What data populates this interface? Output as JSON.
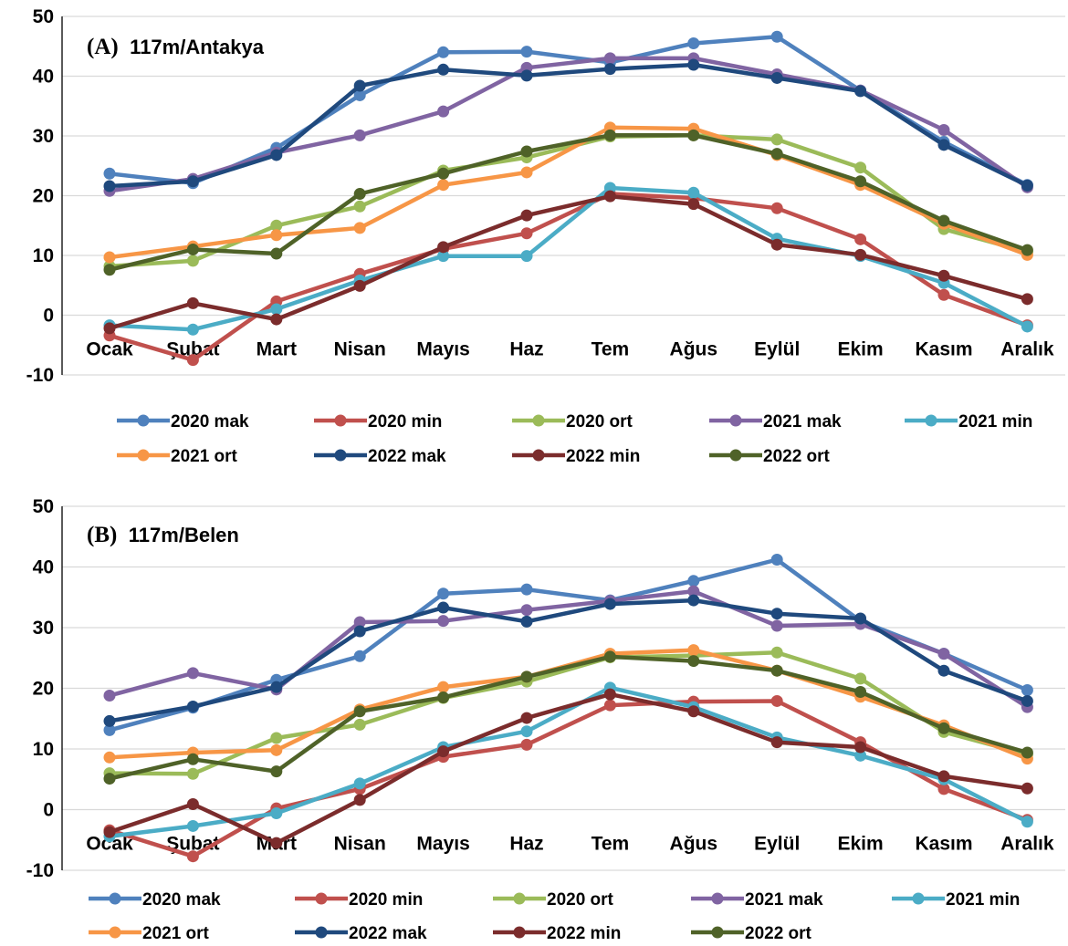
{
  "figure": {
    "panels": [
      {
        "letter": "(A)",
        "title": "117m/Antakya"
      },
      {
        "letter": "(B)",
        "title": "117m/Belen"
      }
    ]
  },
  "chart_data": [
    {
      "type": "line",
      "title": "(A) 117m/Antakya",
      "xlabel": "",
      "ylabel": "",
      "ylim": [
        -10,
        50
      ],
      "yticks": [
        -10,
        0,
        10,
        20,
        30,
        40,
        50
      ],
      "grid": "horizontal",
      "legend": "bottom",
      "categories": [
        "Ocak",
        "Şubat",
        "Mart",
        "Nisan",
        "Mayıs",
        "Haz",
        "Tem",
        "Ağus",
        "Eylül",
        "Ekim",
        "Kasım",
        "Aralık"
      ],
      "series": [
        {
          "name": "2020 mak",
          "color": "#4F81BD",
          "values": [
            23.7,
            22.1,
            28.0,
            36.8,
            44.0,
            44.1,
            42.3,
            45.5,
            46.6,
            37.6,
            29.0,
            21.8
          ]
        },
        {
          "name": "2020 min",
          "color": "#C0504D",
          "values": [
            -3.4,
            -7.5,
            2.3,
            6.9,
            11.1,
            13.7,
            20.3,
            19.6,
            17.9,
            12.7,
            3.4,
            -1.7
          ]
        },
        {
          "name": "2020 ort",
          "color": "#9BBB59",
          "values": [
            8.2,
            9.1,
            15.0,
            18.2,
            24.2,
            26.4,
            29.9,
            30.1,
            29.4,
            24.7,
            14.4,
            10.6
          ]
        },
        {
          "name": "2021 mak",
          "color": "#8064A2",
          "values": [
            20.8,
            22.8,
            27.2,
            30.1,
            34.1,
            41.4,
            43.0,
            43.0,
            40.3,
            37.6,
            31.0,
            21.4
          ]
        },
        {
          "name": "2021 min",
          "color": "#4BACC6",
          "values": [
            -1.7,
            -2.4,
            1.0,
            5.8,
            9.9,
            9.9,
            21.3,
            20.5,
            12.8,
            9.9,
            5.4,
            -1.9
          ]
        },
        {
          "name": "2021 ort",
          "color": "#F79646",
          "values": [
            9.7,
            11.5,
            13.4,
            14.6,
            21.8,
            23.9,
            31.4,
            31.2,
            26.8,
            21.8,
            15.3,
            10.1
          ]
        },
        {
          "name": "2022 mak",
          "color": "#1F497D",
          "values": [
            21.6,
            22.4,
            26.8,
            38.4,
            41.1,
            40.1,
            41.2,
            41.9,
            39.7,
            37.5,
            28.5,
            21.7
          ]
        },
        {
          "name": "2022 min",
          "color": "#7B2C2C",
          "values": [
            -2.2,
            2.0,
            -0.7,
            4.9,
            11.4,
            16.7,
            19.9,
            18.6,
            11.8,
            10.1,
            6.6,
            2.7
          ]
        },
        {
          "name": "2022 ort",
          "color": "#4F6228",
          "values": [
            7.6,
            11.0,
            10.3,
            20.3,
            23.7,
            27.4,
            30.1,
            30.1,
            27.0,
            22.4,
            15.8,
            10.9
          ]
        }
      ]
    },
    {
      "type": "line",
      "title": "(B) 117m/Belen",
      "xlabel": "",
      "ylabel": "",
      "ylim": [
        -10,
        50
      ],
      "yticks": [
        -10,
        0,
        10,
        20,
        30,
        40,
        50
      ],
      "grid": "horizontal",
      "legend": "bottom",
      "categories": [
        "Ocak",
        "Şubat",
        "Mart",
        "Nisan",
        "Mayıs",
        "Haz",
        "Tem",
        "Ağus",
        "Eylül",
        "Ekim",
        "Kasım",
        "Aralık"
      ],
      "series": [
        {
          "name": "2020 mak",
          "color": "#4F81BD",
          "values": [
            13.1,
            16.8,
            21.4,
            25.3,
            35.6,
            36.3,
            34.5,
            37.7,
            41.2,
            31.1,
            25.7,
            19.7
          ]
        },
        {
          "name": "2020 min",
          "color": "#C0504D",
          "values": [
            -3.4,
            -7.7,
            0.2,
            3.4,
            8.7,
            10.7,
            17.2,
            17.8,
            17.9,
            11.1,
            3.4,
            -1.7
          ]
        },
        {
          "name": "2020 ort",
          "color": "#9BBB59",
          "values": [
            6.0,
            5.9,
            11.8,
            14.0,
            18.4,
            21.1,
            25.1,
            25.4,
            25.9,
            21.6,
            12.8,
            9.1
          ]
        },
        {
          "name": "2021 mak",
          "color": "#8064A2",
          "values": [
            18.8,
            22.5,
            19.8,
            30.9,
            31.1,
            32.9,
            34.4,
            36.0,
            30.3,
            30.6,
            25.7,
            16.9
          ]
        },
        {
          "name": "2021 min",
          "color": "#4BACC6",
          "values": [
            -4.4,
            -2.7,
            -0.6,
            4.3,
            10.3,
            12.9,
            20.1,
            16.9,
            11.9,
            8.9,
            5.0,
            -2.0
          ]
        },
        {
          "name": "2021 ort",
          "color": "#F79646",
          "values": [
            8.6,
            9.4,
            9.8,
            16.5,
            20.2,
            21.9,
            25.7,
            26.3,
            22.9,
            18.6,
            13.9,
            8.4
          ]
        },
        {
          "name": "2022 mak",
          "color": "#1F497D",
          "values": [
            14.6,
            17.0,
            20.2,
            29.4,
            33.3,
            31.0,
            33.9,
            34.5,
            32.3,
            31.5,
            22.9,
            17.9
          ]
        },
        {
          "name": "2022 min",
          "color": "#7B2C2C",
          "values": [
            -3.7,
            0.9,
            -5.5,
            1.6,
            9.6,
            15.1,
            19.0,
            16.2,
            11.1,
            10.3,
            5.5,
            3.5
          ]
        },
        {
          "name": "2022 ort",
          "color": "#4F6228",
          "values": [
            5.1,
            8.3,
            6.3,
            16.2,
            18.5,
            21.9,
            25.2,
            24.5,
            22.9,
            19.4,
            13.4,
            9.4
          ]
        }
      ]
    }
  ]
}
